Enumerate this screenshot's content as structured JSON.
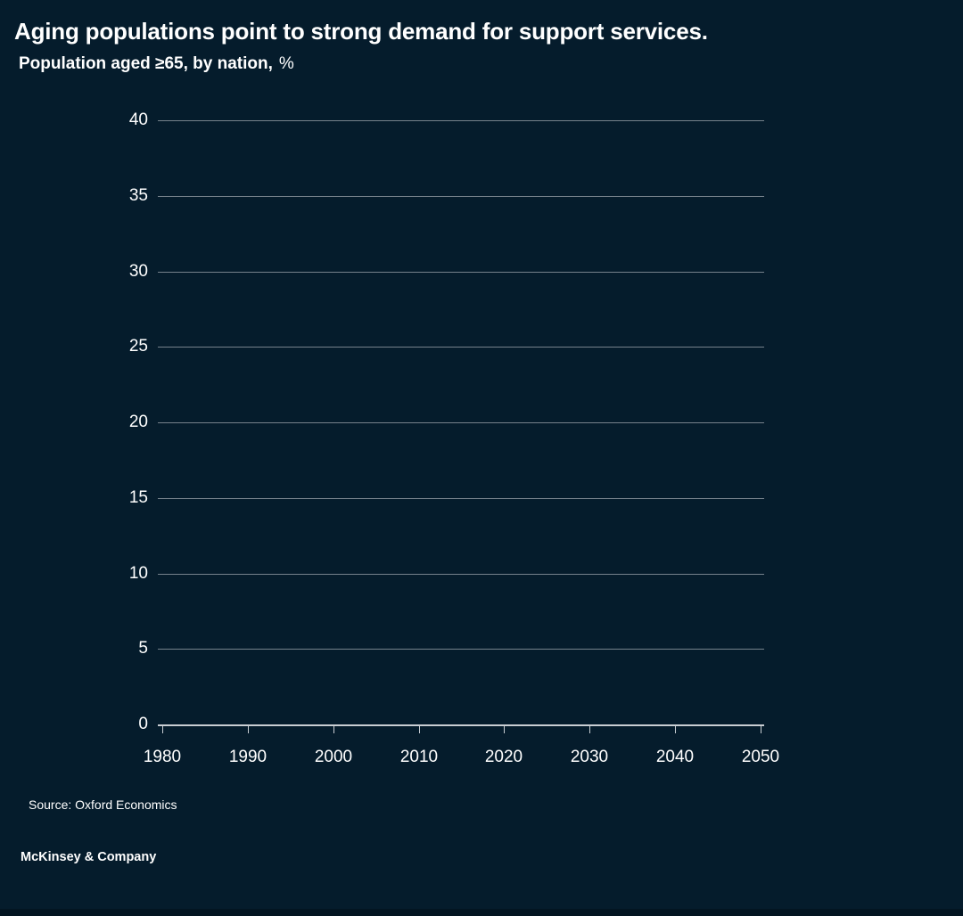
{
  "page": {
    "title": "Aging populations point to strong demand for support services.",
    "subtitle": "Population aged ≥65, by nation,",
    "subtitle_unit": "%",
    "source": "Source: Oxford Economics",
    "brand": "McKinsey & Company"
  },
  "colors": {
    "background": "#051c2c",
    "text": "#ffffff",
    "gridline": "#76828c",
    "axis_line": "#c9ced3",
    "bottom_strip": "#031521"
  },
  "chart_data": {
    "type": "line",
    "title": "Population aged ≥65, by nation, %",
    "xlabel": "",
    "ylabel": "",
    "xlim": [
      1980,
      2050
    ],
    "ylim": [
      0,
      40
    ],
    "x_ticks": [
      1980,
      1990,
      2000,
      2010,
      2020,
      2030,
      2040,
      2050
    ],
    "y_ticks": [
      0,
      5,
      10,
      15,
      20,
      25,
      30,
      35,
      40
    ],
    "grid": true,
    "legend": false,
    "series": []
  }
}
